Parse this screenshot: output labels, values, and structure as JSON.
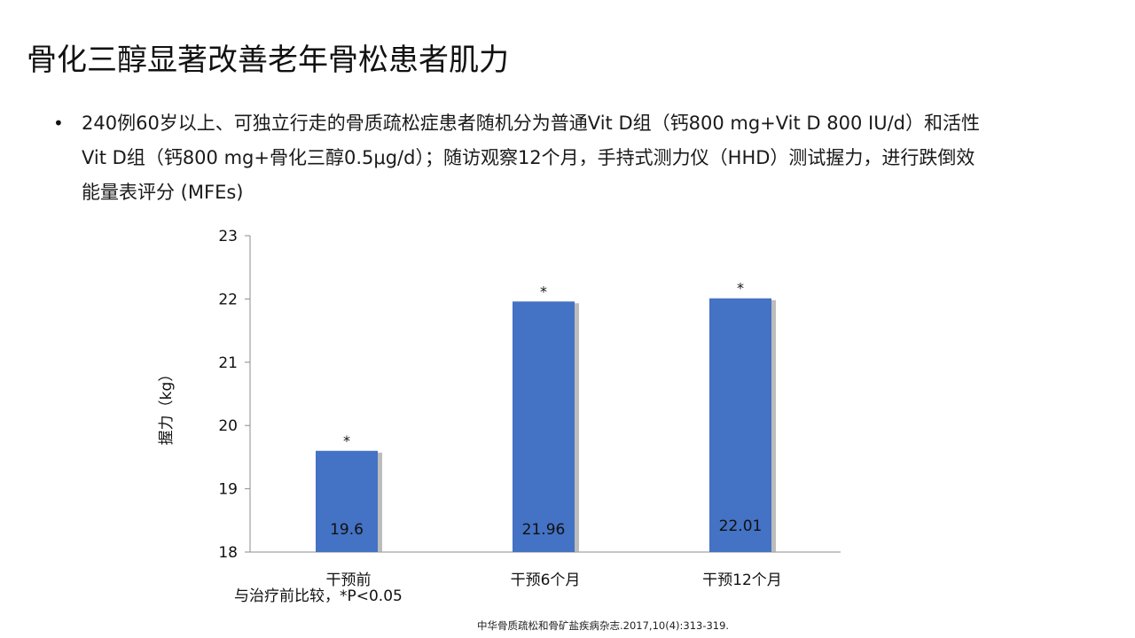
{
  "slide": {
    "title": "骨化三醇显著改善老年骨松患者肌力",
    "bullet_marker": "•",
    "bullet_lines": [
      "240例60岁以上、可独立行走的骨质疏松症患者随机分为普通Vit D组（钙800 mg+Vit D 800 IU/d）和活性",
      "Vit D组（钙800 mg+骨化三醇0.5μg/d）；随访观察12个月，手持式测力仪（HHD）测试握力，进行跌倒效",
      "能量表评分 (MFEs)"
    ],
    "footnote": "与治疗前比较，*P<0.05",
    "citation": "中华骨质疏松和骨矿盐疾病杂志.2017,10(4):313-319."
  },
  "chart_data": {
    "type": "bar",
    "categories": [
      "干预前",
      "干预6个月",
      "干预12个月"
    ],
    "values": [
      19.6,
      21.96,
      22.01
    ],
    "value_labels": [
      "19.6",
      "21.96",
      "22.01"
    ],
    "significance_marks": [
      "*",
      "*",
      "*"
    ],
    "title": "",
    "xlabel": "",
    "ylabel": "握力（kg）",
    "ylim": [
      18,
      23
    ],
    "yticks": [
      "18",
      "19",
      "20",
      "21",
      "22",
      "23"
    ],
    "grid": false,
    "legend": "none",
    "bar_color": "#4472C4",
    "shadow_color": "#A6A6A6"
  }
}
